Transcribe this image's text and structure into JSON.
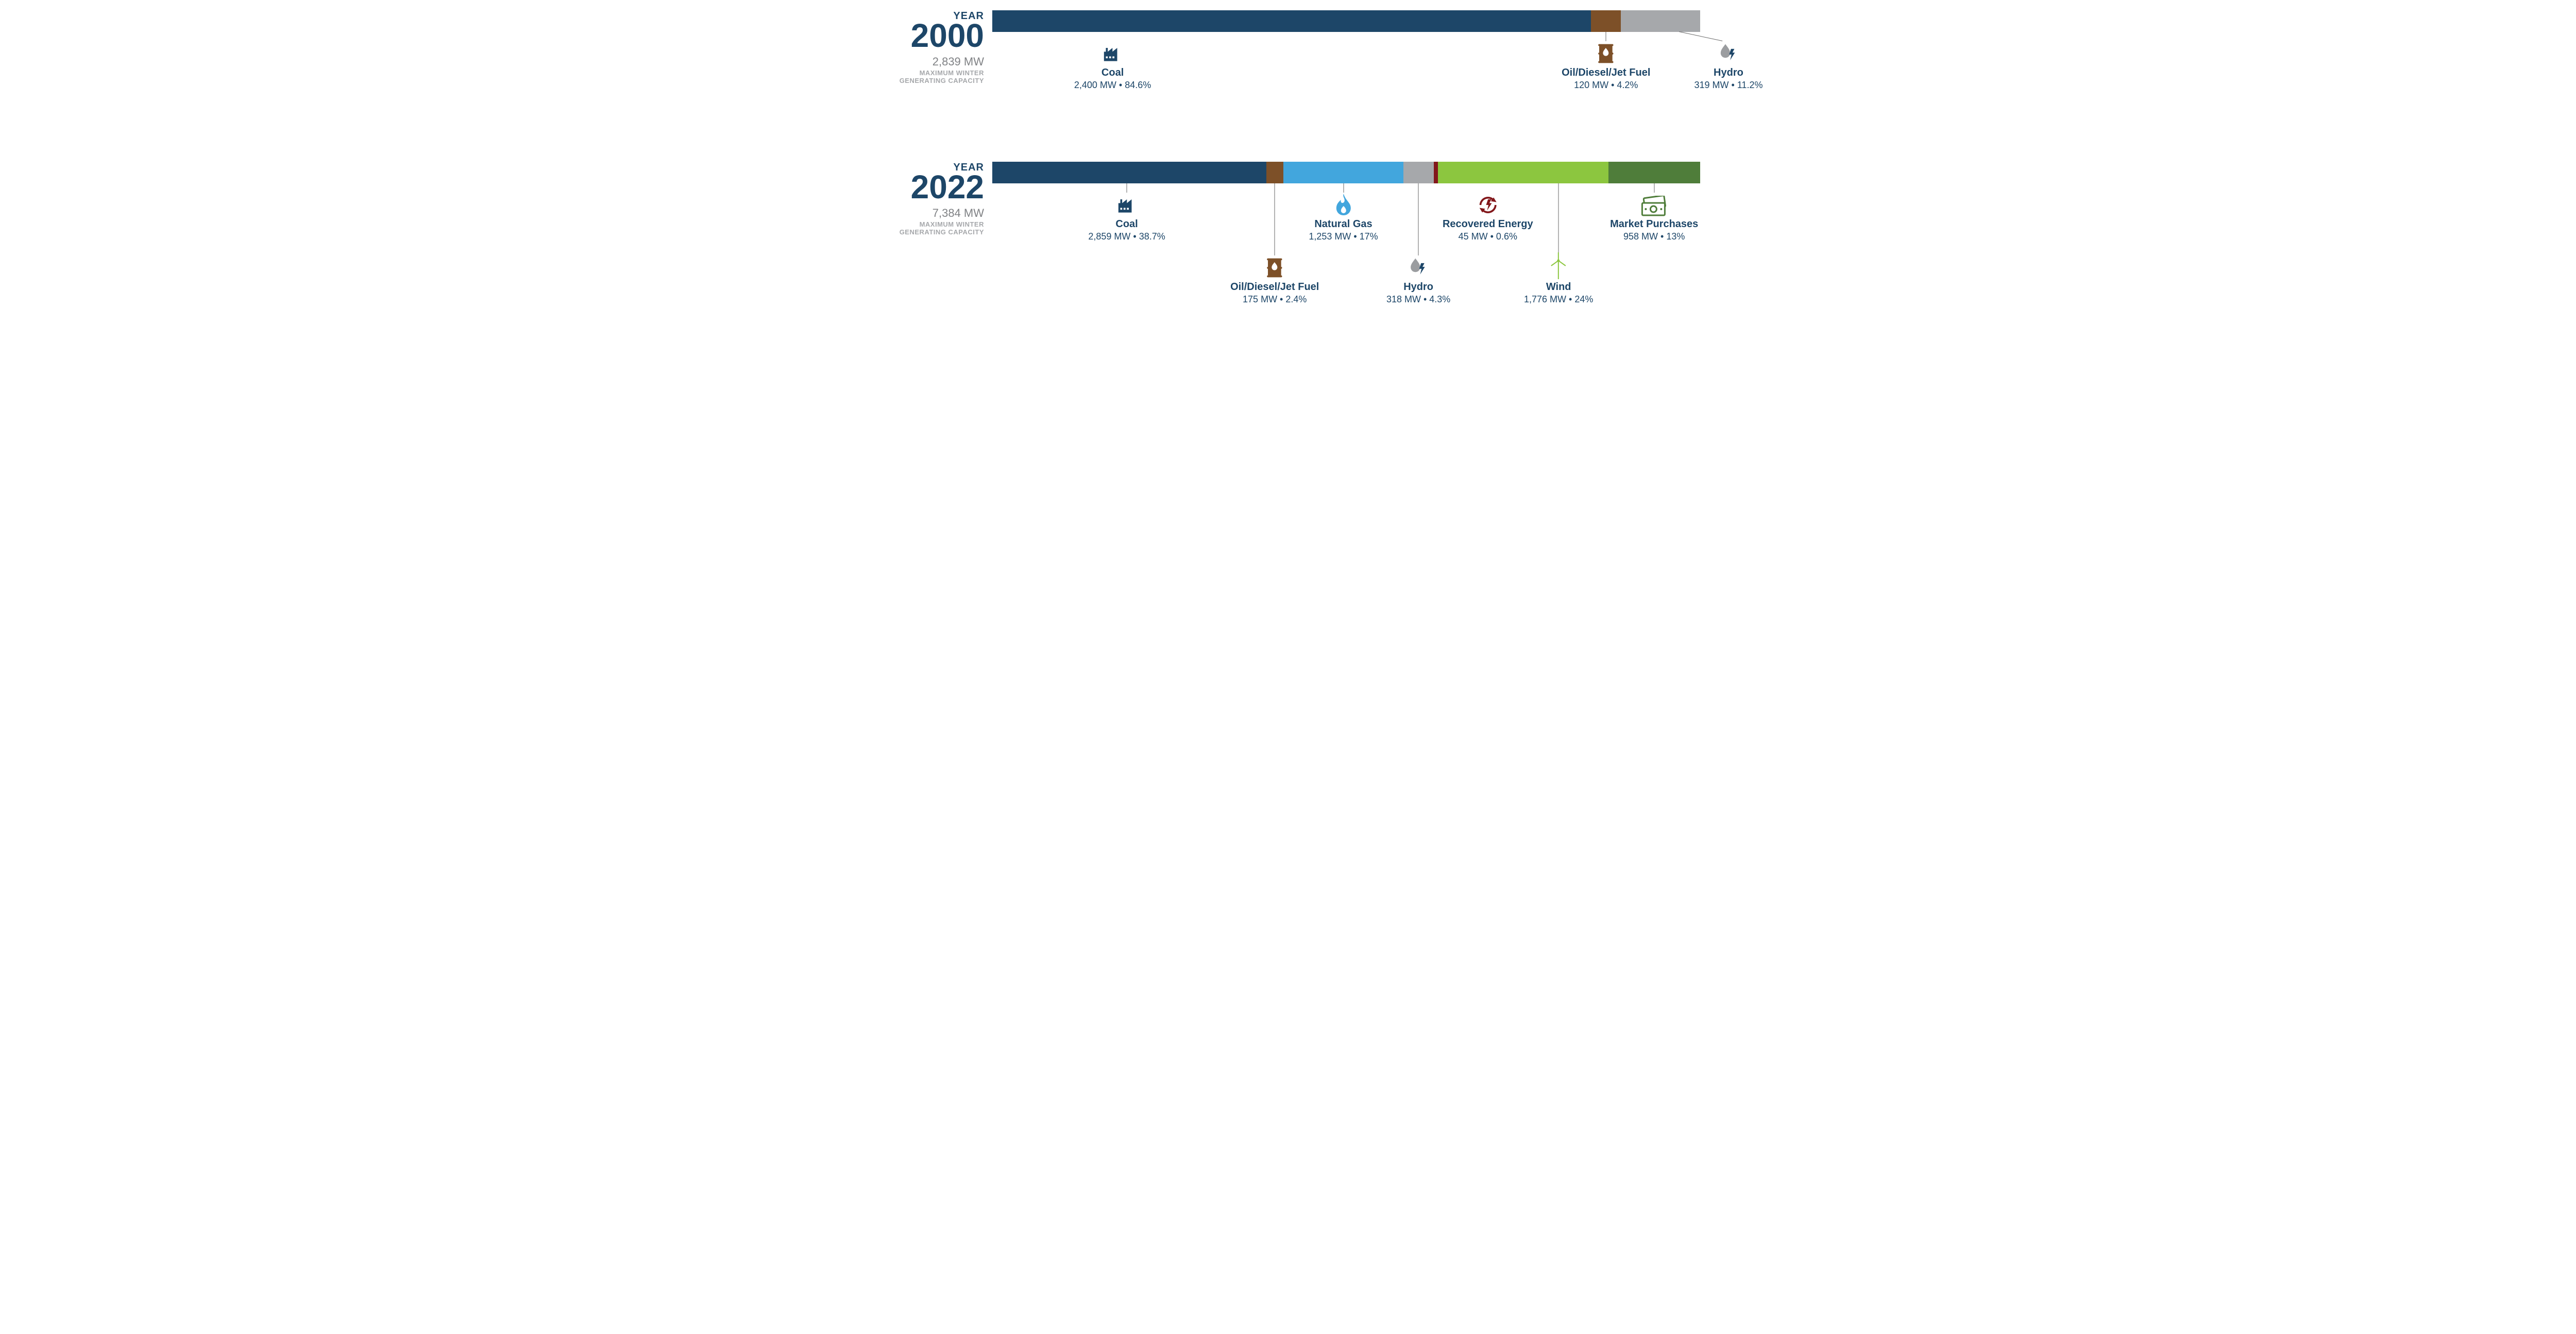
{
  "textColor": "#1d4668",
  "mutedColor": "#808285",
  "subtleColor": "#a6a8ab",
  "years": [
    {
      "yearSmall": "YEAR",
      "year": "2000",
      "mw": "2,839 MW",
      "capLabel1": "MAXIMUM WINTER",
      "capLabel2": "GENERATING CAPACITY",
      "total": 2839,
      "segments": [
        {
          "key": "coal",
          "color": "#1d4668",
          "value": 2400,
          "label": "Coal",
          "mw": "2,400 MW",
          "pct": "84.6%",
          "icon": "factory",
          "iconColor": "#1d4668",
          "row": 0,
          "calloutAt": 0.17
        },
        {
          "key": "oil",
          "color": "#7d5028",
          "value": 120,
          "label": "Oil/Diesel/Jet Fuel",
          "mw": "120 MW",
          "pct": "4.2%",
          "icon": "barrel",
          "iconColor": "#7d5028",
          "row": 0,
          "calloutAt": 0.867
        },
        {
          "key": "hydro",
          "color": "#a6a8ab",
          "value": 319,
          "label": "Hydro",
          "mw": "319 MW",
          "pct": "11.2%",
          "icon": "hydro",
          "iconColor": "#999",
          "row": 0,
          "calloutAt": 1.04,
          "diag": true,
          "diagFromPct": 0.97
        }
      ]
    },
    {
      "yearSmall": "YEAR",
      "year": "2022",
      "mw": "7,384 MW",
      "capLabel1": "MAXIMUM WINTER",
      "capLabel2": "GENERATING CAPACITY",
      "total": 7384,
      "segments": [
        {
          "key": "coal",
          "color": "#1d4668",
          "value": 2859,
          "label": "Coal",
          "mw": "2,859 MW",
          "pct": "38.7%",
          "icon": "factory",
          "iconColor": "#1d4668",
          "row": 0,
          "calloutAt": 0.19
        },
        {
          "key": "oil",
          "color": "#7d5028",
          "value": 175,
          "label": "Oil/Diesel/Jet Fuel",
          "mw": "175 MW",
          "pct": "2.4%",
          "icon": "barrel",
          "iconColor": "#7d5028",
          "row": 1,
          "calloutAt": 0.399
        },
        {
          "key": "natgas",
          "color": "#42a6dd",
          "value": 1253,
          "label": "Natural Gas",
          "mw": "1,253 MW",
          "pct": "17%",
          "icon": "flame",
          "iconColor": "#42a6dd",
          "row": 0,
          "calloutAt": 0.496
        },
        {
          "key": "hydro",
          "color": "#a6a8ab",
          "value": 318,
          "label": "Hydro",
          "mw": "318 MW",
          "pct": "4.3%",
          "icon": "hydro",
          "iconColor": "#999",
          "row": 1,
          "calloutAt": 0.602
        },
        {
          "key": "recov",
          "color": "#82171b",
          "value": 45,
          "label": "Recovered Energy",
          "mw": "45 MW",
          "pct": "0.6%",
          "icon": "recov",
          "iconColor": "#82171b",
          "row": 0,
          "calloutAt": 0.7
        },
        {
          "key": "wind",
          "color": "#8cc63f",
          "value": 1776,
          "label": "Wind",
          "mw": "1,776 MW",
          "pct": "24%",
          "icon": "turbine",
          "iconColor": "#8cc63f",
          "row": 1,
          "calloutAt": 0.8
        },
        {
          "key": "market",
          "color": "#4f7d3a",
          "value": 958,
          "label": "Market Purchases",
          "mw": "958 MW",
          "pct": "13%",
          "icon": "money",
          "iconColor": "#4f7d3a",
          "row": 0,
          "calloutAt": 0.935
        }
      ]
    }
  ]
}
